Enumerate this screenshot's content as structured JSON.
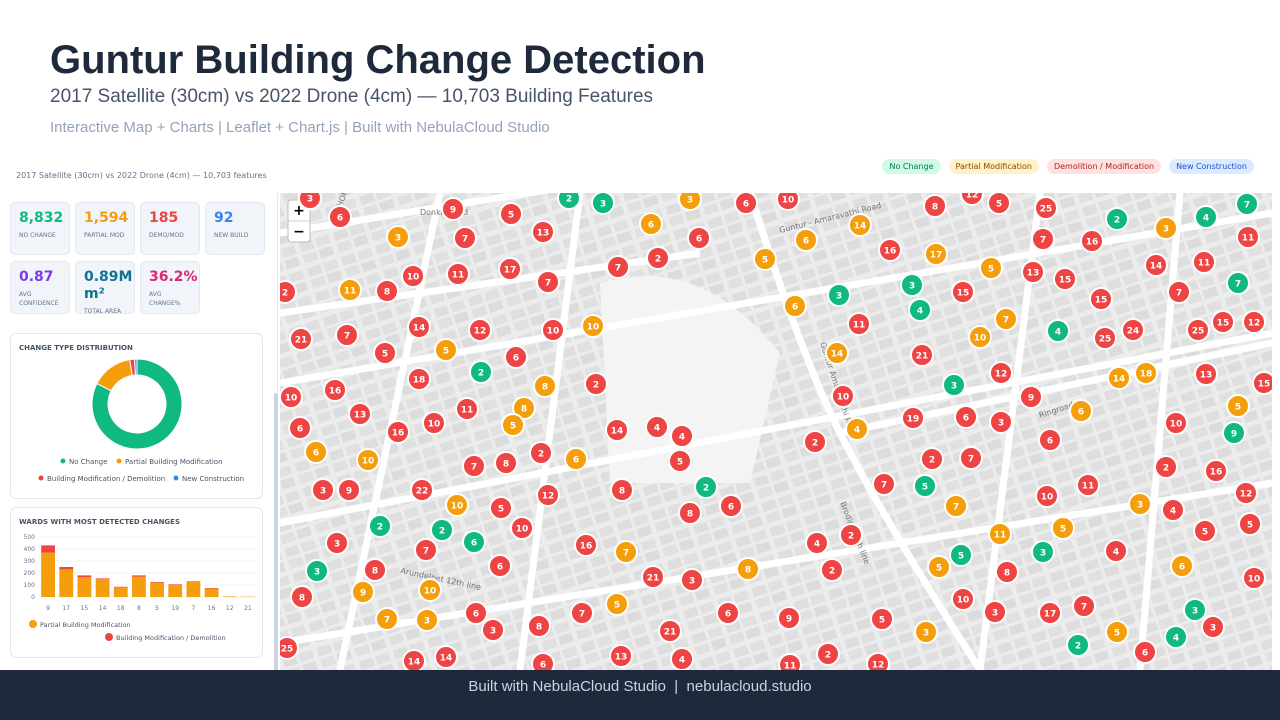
{
  "header": {
    "title": "Guntur Building Change Detection",
    "subtitle": "2017 Satellite (30cm) vs 2022 Drone (4cm) — 10,703 Building Features",
    "credits": "Interactive Map + Charts | Leaflet + Chart.js | Built with NebulaCloud Studio"
  },
  "app": {
    "subtitle": "2017 Satellite (30cm) vs 2022 Drone (4cm) — 10,703 features",
    "chips": [
      {
        "label": "No Change",
        "bg": "#d1fae5",
        "fg": "#047857"
      },
      {
        "label": "Partial Modification",
        "bg": "#fef3c7",
        "fg": "#92400e"
      },
      {
        "label": "Demolition / Modification",
        "bg": "#fee2e2",
        "fg": "#b91c1c"
      },
      {
        "label": "New Construction",
        "bg": "#dbeafe",
        "fg": "#1d4ed8"
      }
    ],
    "stats": [
      {
        "value": "8,832",
        "label": "NO CHANGE",
        "color": "#10b981"
      },
      {
        "value": "1,594",
        "label": "PARTIAL MOD",
        "color": "#f59e0b"
      },
      {
        "value": "185",
        "label": "DEMO/MOD",
        "color": "#ef4444"
      },
      {
        "value": "92",
        "label": "NEW BUILD",
        "color": "#3b82f6"
      },
      {
        "value": "0.87",
        "label": "AVG CONFIDENCE",
        "color": "#7c3aed"
      },
      {
        "value": "0.89M m²",
        "label": "TOTAL AREA",
        "color": "#0e7490"
      },
      {
        "value": "36.2%",
        "label": "AVG CHANGE%",
        "color": "#db2777"
      }
    ]
  },
  "chart_data": [
    {
      "type": "pie",
      "title": "CHANGE TYPE DISTRIBUTION",
      "categories": [
        "No Change",
        "Partial Building Modification",
        "Building Modification / Demolition",
        "New Construction"
      ],
      "values": [
        8832,
        1594,
        185,
        92
      ],
      "colors": [
        "#10b981",
        "#f59e0b",
        "#ef4444",
        "#3b82f6"
      ],
      "donut": true
    },
    {
      "type": "bar",
      "title": "WARDS WITH MOST DETECTED CHANGES",
      "stacked": true,
      "categories": [
        "9",
        "17",
        "15",
        "14",
        "18",
        "8",
        "5",
        "19",
        "7",
        "16",
        "12",
        "21"
      ],
      "series": [
        {
          "name": "Partial Building Modification",
          "color": "#f59e0b",
          "values": [
            370,
            230,
            165,
            150,
            80,
            170,
            120,
            100,
            125,
            70,
            5,
            3
          ]
        },
        {
          "name": "Building Modification / Demolition",
          "color": "#ef4444",
          "values": [
            60,
            20,
            15,
            5,
            5,
            10,
            5,
            5,
            5,
            5,
            0,
            0
          ]
        }
      ],
      "ylim": [
        0,
        500
      ],
      "yticks": [
        0,
        100,
        200,
        300,
        400,
        500
      ],
      "grid": true
    }
  ],
  "map": {
    "zoom_in": "+",
    "zoom_out": "−",
    "roads": [
      "Donka Road",
      "Guntur - Amaravathi Road",
      "Guntur Amaravathi Road",
      "Brodipet 4th line",
      "Arundelpet 12th line",
      "Ringroad",
      "CHOK"
    ],
    "clusters": [
      [
        "3",
        "#ef4444"
      ],
      [
        "6",
        "#ef4444"
      ],
      [
        "3",
        "#f59e0b"
      ],
      [
        "9",
        "#ef4444"
      ],
      [
        "7",
        "#ef4444"
      ],
      [
        "5",
        "#ef4444"
      ],
      [
        "13",
        "#ef4444"
      ],
      [
        "2",
        "#10b981"
      ],
      [
        "3",
        "#10b981"
      ],
      [
        "6",
        "#f59e0b"
      ],
      [
        "3",
        "#f59e0b"
      ],
      [
        "6",
        "#ef4444"
      ],
      [
        "6",
        "#ef4444"
      ],
      [
        "10",
        "#ef4444"
      ],
      [
        "6",
        "#f59e0b"
      ],
      [
        "2",
        "#ef4444"
      ],
      [
        "7",
        "#ef4444"
      ],
      [
        "5",
        "#f59e0b"
      ],
      [
        "14",
        "#f59e0b"
      ],
      [
        "16",
        "#ef4444"
      ],
      [
        "8",
        "#ef4444"
      ],
      [
        "12",
        "#ef4444"
      ],
      [
        "5",
        "#ef4444"
      ],
      [
        "25",
        "#ef4444"
      ],
      [
        "2",
        "#10b981"
      ],
      [
        "4",
        "#10b981"
      ],
      [
        "7",
        "#10b981"
      ],
      [
        "3",
        "#f59e0b"
      ],
      [
        "11",
        "#ef4444"
      ],
      [
        "16",
        "#ef4444"
      ],
      [
        "7",
        "#ef4444"
      ],
      [
        "17",
        "#f59e0b"
      ],
      [
        "5",
        "#f59e0b"
      ],
      [
        "13",
        "#ef4444"
      ],
      [
        "15",
        "#ef4444"
      ],
      [
        "14",
        "#ef4444"
      ],
      [
        "11",
        "#ef4444"
      ],
      [
        "7",
        "#10b981"
      ],
      [
        "7",
        "#ef4444"
      ],
      [
        "15",
        "#ef4444"
      ],
      [
        "15",
        "#ef4444"
      ],
      [
        "3",
        "#10b981"
      ],
      [
        "4",
        "#10b981"
      ],
      [
        "3",
        "#10b981"
      ],
      [
        "11",
        "#ef4444"
      ],
      [
        "6",
        "#f59e0b"
      ],
      [
        "10",
        "#ef4444"
      ],
      [
        "11",
        "#ef4444"
      ],
      [
        "17",
        "#ef4444"
      ],
      [
        "7",
        "#ef4444"
      ],
      [
        "11",
        "#f59e0b"
      ],
      [
        "8",
        "#ef4444"
      ],
      [
        "2",
        "#ef4444"
      ],
      [
        "14",
        "#ef4444"
      ],
      [
        "12",
        "#ef4444"
      ],
      [
        "10",
        "#ef4444"
      ],
      [
        "10",
        "#f59e0b"
      ],
      [
        "7",
        "#ef4444"
      ],
      [
        "21",
        "#ef4444"
      ],
      [
        "5",
        "#ef4444"
      ],
      [
        "5",
        "#f59e0b"
      ],
      [
        "6",
        "#ef4444"
      ],
      [
        "2",
        "#10b981"
      ],
      [
        "18",
        "#ef4444"
      ],
      [
        "8",
        "#f59e0b"
      ],
      [
        "2",
        "#ef4444"
      ],
      [
        "16",
        "#ef4444"
      ],
      [
        "10",
        "#ef4444"
      ],
      [
        "11",
        "#ef4444"
      ],
      [
        "8",
        "#f59e0b"
      ],
      [
        "5",
        "#f59e0b"
      ],
      [
        "13",
        "#ef4444"
      ],
      [
        "6",
        "#ef4444"
      ],
      [
        "16",
        "#ef4444"
      ],
      [
        "10",
        "#ef4444"
      ],
      [
        "14",
        "#ef4444"
      ],
      [
        "4",
        "#ef4444"
      ],
      [
        "4",
        "#ef4444"
      ],
      [
        "2",
        "#ef4444"
      ],
      [
        "6",
        "#f59e0b"
      ],
      [
        "5",
        "#ef4444"
      ],
      [
        "6",
        "#f59e0b"
      ],
      [
        "10",
        "#f59e0b"
      ],
      [
        "7",
        "#ef4444"
      ],
      [
        "8",
        "#ef4444"
      ],
      [
        "3",
        "#ef4444"
      ],
      [
        "9",
        "#ef4444"
      ],
      [
        "22",
        "#ef4444"
      ],
      [
        "12",
        "#ef4444"
      ],
      [
        "8",
        "#ef4444"
      ],
      [
        "2",
        "#10b981"
      ],
      [
        "10",
        "#f59e0b"
      ],
      [
        "5",
        "#ef4444"
      ],
      [
        "8",
        "#ef4444"
      ],
      [
        "6",
        "#ef4444"
      ],
      [
        "10",
        "#ef4444"
      ],
      [
        "2",
        "#10b981"
      ],
      [
        "2",
        "#10b981"
      ],
      [
        "6",
        "#10b981"
      ],
      [
        "3",
        "#ef4444"
      ],
      [
        "7",
        "#ef4444"
      ],
      [
        "16",
        "#ef4444"
      ],
      [
        "7",
        "#f59e0b"
      ],
      [
        "3",
        "#10b981"
      ],
      [
        "8",
        "#ef4444"
      ],
      [
        "6",
        "#ef4444"
      ],
      [
        "21",
        "#ef4444"
      ],
      [
        "3",
        "#ef4444"
      ],
      [
        "8",
        "#f59e0b"
      ],
      [
        "9",
        "#f59e0b"
      ],
      [
        "10",
        "#f59e0b"
      ],
      [
        "8",
        "#ef4444"
      ],
      [
        "7",
        "#f59e0b"
      ],
      [
        "3",
        "#f59e0b"
      ],
      [
        "6",
        "#ef4444"
      ],
      [
        "3",
        "#ef4444"
      ],
      [
        "8",
        "#ef4444"
      ],
      [
        "7",
        "#ef4444"
      ],
      [
        "5",
        "#f59e0b"
      ],
      [
        "21",
        "#ef4444"
      ],
      [
        "6",
        "#ef4444"
      ],
      [
        "9",
        "#ef4444"
      ],
      [
        "25",
        "#ef4444"
      ],
      [
        "14",
        "#ef4444"
      ],
      [
        "14",
        "#ef4444"
      ],
      [
        "6",
        "#ef4444"
      ],
      [
        "13",
        "#ef4444"
      ],
      [
        "4",
        "#ef4444"
      ],
      [
        "11",
        "#ef4444"
      ],
      [
        "2",
        "#ef4444"
      ],
      [
        "12",
        "#ef4444"
      ],
      [
        "5",
        "#ef4444"
      ],
      [
        "3",
        "#f59e0b"
      ],
      [
        "4",
        "#ef4444"
      ],
      [
        "2",
        "#ef4444"
      ],
      [
        "2",
        "#ef4444"
      ],
      [
        "2",
        "#ef4444"
      ],
      [
        "4",
        "#f59e0b"
      ],
      [
        "10",
        "#ef4444"
      ],
      [
        "14",
        "#f59e0b"
      ],
      [
        "21",
        "#ef4444"
      ],
      [
        "3",
        "#10b981"
      ],
      [
        "10",
        "#f59e0b"
      ],
      [
        "7",
        "#f59e0b"
      ],
      [
        "12",
        "#ef4444"
      ],
      [
        "9",
        "#ef4444"
      ],
      [
        "19",
        "#ef4444"
      ],
      [
        "6",
        "#ef4444"
      ],
      [
        "3",
        "#ef4444"
      ],
      [
        "4",
        "#10b981"
      ],
      [
        "25",
        "#ef4444"
      ],
      [
        "24",
        "#ef4444"
      ],
      [
        "25",
        "#ef4444"
      ],
      [
        "15",
        "#ef4444"
      ],
      [
        "12",
        "#ef4444"
      ],
      [
        "14",
        "#f59e0b"
      ],
      [
        "18",
        "#f59e0b"
      ],
      [
        "13",
        "#ef4444"
      ],
      [
        "15",
        "#ef4444"
      ],
      [
        "6",
        "#f59e0b"
      ],
      [
        "5",
        "#f59e0b"
      ],
      [
        "10",
        "#ef4444"
      ],
      [
        "9",
        "#10b981"
      ],
      [
        "6",
        "#ef4444"
      ],
      [
        "2",
        "#ef4444"
      ],
      [
        "7",
        "#ef4444"
      ],
      [
        "7",
        "#ef4444"
      ],
      [
        "5",
        "#10b981"
      ],
      [
        "11",
        "#ef4444"
      ],
      [
        "10",
        "#ef4444"
      ],
      [
        "2",
        "#ef4444"
      ],
      [
        "16",
        "#ef4444"
      ],
      [
        "12",
        "#ef4444"
      ],
      [
        "7",
        "#f59e0b"
      ],
      [
        "3",
        "#f59e0b"
      ],
      [
        "4",
        "#ef4444"
      ],
      [
        "11",
        "#f59e0b"
      ],
      [
        "5",
        "#f59e0b"
      ],
      [
        "5",
        "#ef4444"
      ],
      [
        "5",
        "#ef4444"
      ],
      [
        "3",
        "#10b981"
      ],
      [
        "4",
        "#ef4444"
      ],
      [
        "5",
        "#10b981"
      ],
      [
        "5",
        "#f59e0b"
      ],
      [
        "8",
        "#ef4444"
      ],
      [
        "6",
        "#f59e0b"
      ],
      [
        "10",
        "#ef4444"
      ],
      [
        "10",
        "#ef4444"
      ],
      [
        "3",
        "#ef4444"
      ],
      [
        "17",
        "#ef4444"
      ],
      [
        "7",
        "#ef4444"
      ],
      [
        "3",
        "#10b981"
      ],
      [
        "3",
        "#ef4444"
      ],
      [
        "5",
        "#f59e0b"
      ],
      [
        "4",
        "#10b981"
      ],
      [
        "2",
        "#10b981"
      ],
      [
        "6",
        "#ef4444"
      ]
    ]
  },
  "footer": {
    "text": "Built with NebulaCloud Studio  |  nebulacloud.studio"
  }
}
